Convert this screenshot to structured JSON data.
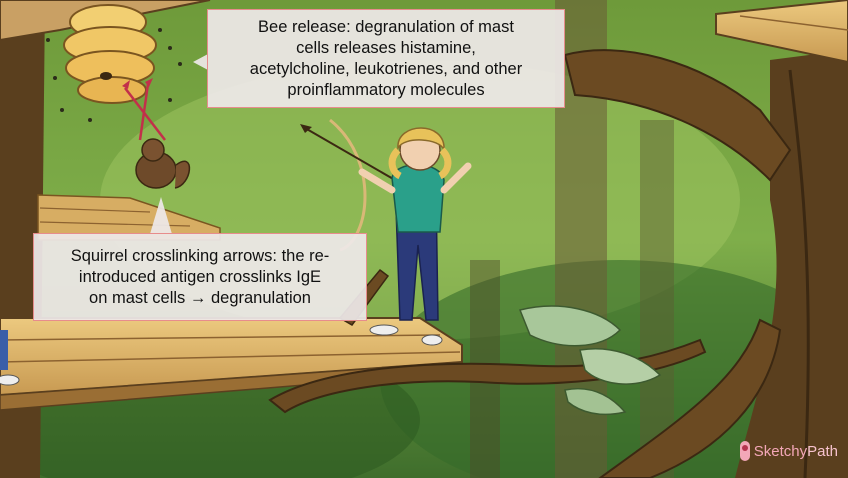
{
  "callouts": {
    "bee_release": {
      "lines": [
        "Bee release: degranulation of mast",
        "cells releases histamine,",
        "acetylcholine, leukotrienes, and other",
        "proinflammatory molecules"
      ]
    },
    "squirrel_crosslinking": {
      "lines": [
        "Squirrel crosslinking arrows: the re-",
        "introduced antigen crosslinks IgE",
        "on mast cells → degranulation"
      ]
    }
  },
  "logo": {
    "part1": "Sketchy",
    "part2": "Path",
    "color": "#f3a7b8"
  },
  "colors": {
    "forest_light": "#7fa84a",
    "forest_dark": "#2f5a24",
    "wood": "#e3bd73",
    "wood_dark": "#b98a45",
    "trunk": "#5a3f1e",
    "callout_border": "#e78c8c"
  }
}
